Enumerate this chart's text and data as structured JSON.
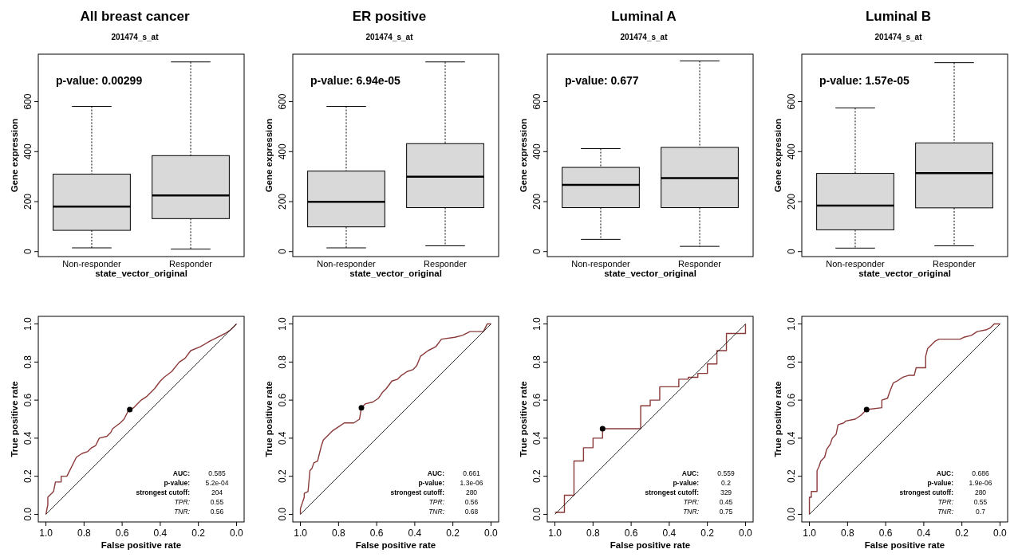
{
  "chart_data": [
    {
      "type": "box",
      "title": "All breast cancer",
      "subtitle": "201474_s_at",
      "xlabel": "state_vector_original",
      "ylabel": "Gene expression",
      "categories": [
        "Non-responder",
        "Responder"
      ],
      "ylim": [
        -20,
        790
      ],
      "yticks": [
        0,
        200,
        400,
        600
      ],
      "annotations": [
        "p-value: 0.00299"
      ],
      "series": [
        {
          "color": "#d9d9d9",
          "boxes": [
            {
              "low": 15,
              "q1": 85,
              "median": 180,
              "q3": 310,
              "high": 581
            },
            {
              "low": 10,
              "q1": 132,
              "median": 225,
              "q3": 384,
              "high": 759
            }
          ]
        }
      ]
    },
    {
      "type": "box",
      "title": "ER positive",
      "subtitle": "201474_s_at",
      "xlabel": "state_vector_original",
      "ylabel": "Gene expression",
      "categories": [
        "Non-responder",
        "Responder"
      ],
      "ylim": [
        -20,
        790
      ],
      "yticks": [
        0,
        200,
        400,
        600
      ],
      "annotations": [
        "p-value: 6.94e-05"
      ],
      "series": [
        {
          "color": "#d9d9d9",
          "boxes": [
            {
              "low": 15,
              "q1": 99,
              "median": 199,
              "q3": 322,
              "high": 581
            },
            {
              "low": 23,
              "q1": 176,
              "median": 300,
              "q3": 432,
              "high": 759
            }
          ]
        }
      ]
    },
    {
      "type": "box",
      "title": "Luminal A",
      "subtitle": "201474_s_at",
      "xlabel": "state_vector_original",
      "ylabel": "Gene expression",
      "categories": [
        "Non-responder",
        "Responder"
      ],
      "ylim": [
        -20,
        790
      ],
      "yticks": [
        0,
        200,
        400,
        600
      ],
      "annotations": [
        "p-value: 0.677"
      ],
      "series": [
        {
          "color": "#d9d9d9",
          "boxes": [
            {
              "low": 49,
              "q1": 176,
              "median": 267,
              "q3": 337,
              "high": 412
            },
            {
              "low": 21,
              "q1": 176,
              "median": 294,
              "q3": 417,
              "high": 763
            }
          ]
        }
      ]
    },
    {
      "type": "box",
      "title": "Luminal B",
      "subtitle": "201474_s_at",
      "xlabel": "state_vector_original",
      "ylabel": "Gene expression",
      "categories": [
        "Non-responder",
        "Responder"
      ],
      "ylim": [
        -20,
        790
      ],
      "yticks": [
        0,
        200,
        400,
        600
      ],
      "annotations": [
        "p-value: 1.57e-05"
      ],
      "series": [
        {
          "color": "#d9d9d9",
          "boxes": [
            {
              "low": 14,
              "q1": 87,
              "median": 184,
              "q3": 313,
              "high": 575
            },
            {
              "low": 23,
              "q1": 175,
              "median": 314,
              "q3": 435,
              "high": 756
            }
          ]
        }
      ]
    },
    {
      "type": "line",
      "xlabel": "False positive rate",
      "ylabel": "True positive rate",
      "xlim": [
        1.04,
        -0.04
      ],
      "ylim": [
        -0.04,
        1.04
      ],
      "xticks": [
        {
          "value": 1,
          "label": "1.0"
        },
        {
          "value": 0.8,
          "label": "0.8"
        },
        {
          "value": 0.6,
          "label": "0.6"
        },
        {
          "value": 0.4,
          "label": "0.4"
        },
        {
          "value": 0.2,
          "label": "0.2"
        },
        {
          "value": 0,
          "label": "0.0"
        }
      ],
      "yticks": [
        {
          "value": 0,
          "label": "0.0"
        },
        {
          "value": 0.2,
          "label": "0.2"
        },
        {
          "value": 0.4,
          "label": "0.4"
        },
        {
          "value": 0.6,
          "label": "0.6"
        },
        {
          "value": 0.8,
          "label": "0.8"
        },
        {
          "value": 1,
          "label": "1.0"
        }
      ],
      "annotations": [
        "AUC:",
        "0.585",
        "p-value:",
        "5.2e-04",
        "strongest cutoff:",
        "204",
        "TPR:",
        "0.55",
        "TNR:",
        "0.56"
      ],
      "series": [
        {
          "color": "#8b3a3a",
          "x": [
            1,
            0.99,
            0.99,
            0.98,
            0.97,
            0.96,
            0.95,
            0.92,
            0.92,
            0.89,
            0.87,
            0.85,
            0.84,
            0.81,
            0.78,
            0.76,
            0.74,
            0.72,
            0.68,
            0.66,
            0.65,
            0.61,
            0.59,
            0.57,
            0.54,
            0.5,
            0.47,
            0.43,
            0.4,
            0.38,
            0.34,
            0.3,
            0.27,
            0.24,
            0.19,
            0.14,
            0.1,
            0.06,
            0.03,
            0
          ],
          "values": [
            0,
            0.05,
            0.09,
            0.1,
            0.11,
            0.12,
            0.17,
            0.17,
            0.2,
            0.2,
            0.24,
            0.28,
            0.3,
            0.32,
            0.33,
            0.35,
            0.36,
            0.4,
            0.41,
            0.43,
            0.45,
            0.48,
            0.5,
            0.54,
            0.56,
            0.6,
            0.62,
            0.66,
            0.7,
            0.72,
            0.75,
            0.8,
            0.82,
            0.86,
            0.88,
            0.91,
            0.93,
            0.95,
            0.97,
            1
          ]
        },
        {
          "type": "line",
          "color": "#000000",
          "x": [
            1,
            0
          ],
          "values": [
            0,
            1
          ]
        },
        {
          "type": "scatter",
          "color": "#000000",
          "x": [
            0.56
          ],
          "values": [
            0.55
          ]
        }
      ]
    },
    {
      "type": "line",
      "xlabel": "False positive rate",
      "ylabel": "True positive rate",
      "xlim": [
        1.04,
        -0.04
      ],
      "ylim": [
        -0.04,
        1.04
      ],
      "xticks": [
        {
          "value": 1,
          "label": "1.0"
        },
        {
          "value": 0.8,
          "label": "0.8"
        },
        {
          "value": 0.6,
          "label": "0.6"
        },
        {
          "value": 0.4,
          "label": "0.4"
        },
        {
          "value": 0.2,
          "label": "0.2"
        },
        {
          "value": 0,
          "label": "0.0"
        }
      ],
      "yticks": [
        {
          "value": 0,
          "label": "0.0"
        },
        {
          "value": 0.2,
          "label": "0.2"
        },
        {
          "value": 0.4,
          "label": "0.4"
        },
        {
          "value": 0.6,
          "label": "0.6"
        },
        {
          "value": 0.8,
          "label": "0.8"
        },
        {
          "value": 1,
          "label": "1.0"
        }
      ],
      "annotations": [
        "AUC:",
        "0.661",
        "p-value:",
        "1.3e-06",
        "strongest cutoff:",
        "280",
        "TPR:",
        "0.56",
        "TNR:",
        "0.68"
      ],
      "series": [
        {
          "color": "#8b3a3a",
          "x": [
            1,
            1,
            0.99,
            0.98,
            0.98,
            0.96,
            0.95,
            0.94,
            0.93,
            0.91,
            0.9,
            0.89,
            0.88,
            0.86,
            0.83,
            0.8,
            0.77,
            0.72,
            0.69,
            0.68,
            0.66,
            0.62,
            0.59,
            0.57,
            0.55,
            0.52,
            0.49,
            0.47,
            0.44,
            0.41,
            0.39,
            0.37,
            0.33,
            0.29,
            0.26,
            0.19,
            0.15,
            0.11,
            0.04,
            0.03,
            0.02,
            0
          ],
          "values": [
            0,
            0.03,
            0.06,
            0.09,
            0.11,
            0.12,
            0.23,
            0.24,
            0.27,
            0.28,
            0.32,
            0.36,
            0.39,
            0.41,
            0.44,
            0.46,
            0.48,
            0.48,
            0.5,
            0.56,
            0.58,
            0.59,
            0.61,
            0.64,
            0.66,
            0.7,
            0.71,
            0.73,
            0.75,
            0.76,
            0.78,
            0.83,
            0.86,
            0.88,
            0.92,
            0.93,
            0.94,
            0.96,
            0.96,
            0.98,
            1,
            1
          ]
        },
        {
          "type": "line",
          "color": "#000000",
          "x": [
            1,
            0
          ],
          "values": [
            0,
            1
          ]
        },
        {
          "type": "scatter",
          "color": "#000000",
          "x": [
            0.68
          ],
          "values": [
            0.56
          ]
        }
      ]
    },
    {
      "type": "line",
      "xlabel": "False positive rate",
      "ylabel": "True positive rate",
      "xlim": [
        1.04,
        -0.04
      ],
      "ylim": [
        -0.04,
        1.04
      ],
      "xticks": [
        {
          "value": 1,
          "label": "1.0"
        },
        {
          "value": 0.8,
          "label": "0.8"
        },
        {
          "value": 0.6,
          "label": "0.6"
        },
        {
          "value": 0.4,
          "label": "0.4"
        },
        {
          "value": 0.2,
          "label": "0.2"
        },
        {
          "value": 0,
          "label": "0.0"
        }
      ],
      "yticks": [
        {
          "value": 0,
          "label": "0.0"
        },
        {
          "value": 0.2,
          "label": "0.2"
        },
        {
          "value": 0.4,
          "label": "0.4"
        },
        {
          "value": 0.6,
          "label": "0.6"
        },
        {
          "value": 0.8,
          "label": "0.8"
        },
        {
          "value": 1,
          "label": "1.0"
        }
      ],
      "annotations": [
        "AUC:",
        "0.559",
        "p-value:",
        "0.2",
        "strongest cutoff:",
        "329",
        "TPR:",
        "0.45",
        "TNR:",
        "0.75"
      ],
      "series": [
        {
          "color": "#8b3a3a",
          "x": [
            1,
            0.95,
            0.95,
            0.9,
            0.9,
            0.85,
            0.85,
            0.8,
            0.8,
            0.75,
            0.75,
            0.55,
            0.55,
            0.5,
            0.5,
            0.45,
            0.45,
            0.35,
            0.35,
            0.3,
            0.3,
            0.25,
            0.25,
            0.2,
            0.2,
            0.15,
            0.15,
            0.1,
            0.1,
            0,
            0
          ],
          "values": [
            0.01,
            0.01,
            0.1,
            0.1,
            0.28,
            0.28,
            0.35,
            0.35,
            0.4,
            0.4,
            0.45,
            0.45,
            0.57,
            0.57,
            0.6,
            0.6,
            0.67,
            0.67,
            0.71,
            0.71,
            0.72,
            0.72,
            0.74,
            0.74,
            0.79,
            0.79,
            0.86,
            0.86,
            0.95,
            0.95,
            1
          ]
        },
        {
          "type": "line",
          "color": "#000000",
          "x": [
            1,
            0
          ],
          "values": [
            0,
            1
          ]
        },
        {
          "type": "scatter",
          "color": "#000000",
          "x": [
            0.75
          ],
          "values": [
            0.45
          ]
        }
      ]
    },
    {
      "type": "line",
      "xlabel": "False positive rate",
      "ylabel": "True positive rate",
      "xlim": [
        1.04,
        -0.04
      ],
      "ylim": [
        -0.04,
        1.04
      ],
      "xticks": [
        {
          "value": 1,
          "label": "1.0"
        },
        {
          "value": 0.8,
          "label": "0.8"
        },
        {
          "value": 0.6,
          "label": "0.6"
        },
        {
          "value": 0.4,
          "label": "0.4"
        },
        {
          "value": 0.2,
          "label": "0.2"
        },
        {
          "value": 0,
          "label": "0.0"
        }
      ],
      "yticks": [
        {
          "value": 0,
          "label": "0.0"
        },
        {
          "value": 0.2,
          "label": "0.2"
        },
        {
          "value": 0.4,
          "label": "0.4"
        },
        {
          "value": 0.6,
          "label": "0.6"
        },
        {
          "value": 0.8,
          "label": "0.8"
        },
        {
          "value": 1,
          "label": "1.0"
        }
      ],
      "annotations": [
        "AUC:",
        "0.686",
        "p-value:",
        "1.9e-06",
        "strongest cutoff:",
        "280",
        "TPR:",
        "0.55",
        "TNR:",
        "0.7"
      ],
      "series": [
        {
          "color": "#8b3a3a",
          "x": [
            1,
            1,
            0.99,
            0.99,
            0.96,
            0.96,
            0.95,
            0.94,
            0.92,
            0.91,
            0.89,
            0.88,
            0.86,
            0.85,
            0.82,
            0.81,
            0.76,
            0.73,
            0.7,
            0.62,
            0.62,
            0.59,
            0.58,
            0.56,
            0.54,
            0.51,
            0.48,
            0.45,
            0.44,
            0.39,
            0.39,
            0.38,
            0.36,
            0.34,
            0.32,
            0.21,
            0.19,
            0.15,
            0.12,
            0.07,
            0.05,
            0.03,
            0
          ],
          "values": [
            0,
            0.09,
            0.09,
            0.12,
            0.12,
            0.23,
            0.25,
            0.28,
            0.3,
            0.34,
            0.37,
            0.4,
            0.42,
            0.47,
            0.48,
            0.49,
            0.5,
            0.52,
            0.55,
            0.56,
            0.6,
            0.61,
            0.64,
            0.69,
            0.7,
            0.72,
            0.73,
            0.73,
            0.77,
            0.77,
            0.83,
            0.87,
            0.89,
            0.91,
            0.92,
            0.92,
            0.93,
            0.94,
            0.96,
            0.97,
            0.98,
            1,
            1
          ]
        },
        {
          "type": "line",
          "color": "#000000",
          "x": [
            1,
            0
          ],
          "values": [
            0,
            1
          ]
        },
        {
          "type": "scatter",
          "color": "#000000",
          "x": [
            0.7
          ],
          "values": [
            0.55
          ]
        }
      ]
    }
  ]
}
